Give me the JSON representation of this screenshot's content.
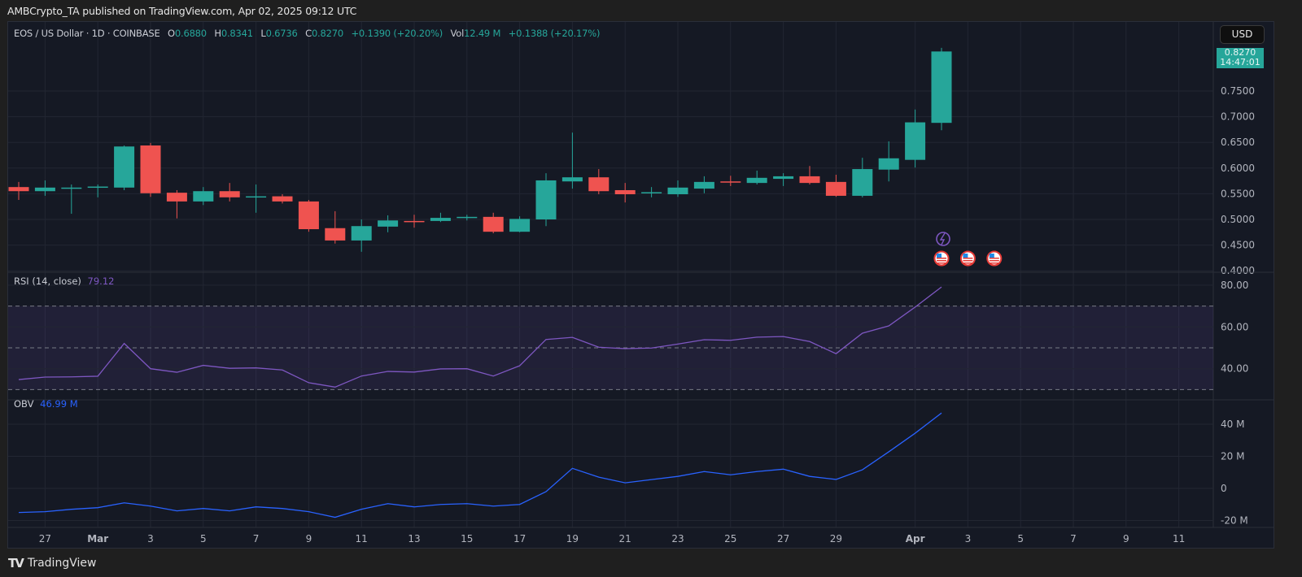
{
  "published": "AMBCrypto_TA published on TradingView.com, Apr 02, 2025 09:12 UTC",
  "legend": {
    "symbol": "EOS / US Dollar · 1D · COINBASE",
    "o_label": "O",
    "o": "0.6880",
    "h_label": "H",
    "h": "0.8341",
    "l_label": "L",
    "l": "0.6736",
    "c_label": "C",
    "c": "0.8270",
    "change": "+0.1390 (+20.20%)",
    "vol_label": "Vol",
    "vol": "12.49 M",
    "vol_change": "+0.1388 (+20.17%)"
  },
  "currency_button": "USD",
  "last_price": {
    "price": "0.8270",
    "countdown": "14:47:01"
  },
  "rsi": {
    "label": "RSI (14, close)",
    "value": "79.12"
  },
  "obv": {
    "label": "OBV",
    "value": "46.99 M"
  },
  "footer": {
    "brand": "TradingView"
  },
  "colors": {
    "up": "#26a69a",
    "down": "#ef5350",
    "rsi": "#7e57c2",
    "obv": "#2962ff",
    "background": "#151924"
  },
  "chart_data": {
    "type": "candlestick",
    "symbol": "EOS/USD",
    "interval": "1D",
    "price_axis": {
      "ticks": [
        "0.4000",
        "0.4500",
        "0.5000",
        "0.5500",
        "0.6000",
        "0.6500",
        "0.7000",
        "0.7500"
      ],
      "range": [
        0.395,
        0.86
      ]
    },
    "date_axis": {
      "ticks": [
        "27",
        "Mar",
        "3",
        "5",
        "7",
        "9",
        "11",
        "13",
        "15",
        "17",
        "19",
        "21",
        "23",
        "25",
        "27",
        "29",
        "Apr",
        "3",
        "5",
        "7",
        "9",
        "11"
      ],
      "tick_dates": [
        "2025-02-27",
        "2025-03-01",
        "2025-03-03",
        "2025-03-05",
        "2025-03-07",
        "2025-03-09",
        "2025-03-11",
        "2025-03-13",
        "2025-03-15",
        "2025-03-17",
        "2025-03-19",
        "2025-03-21",
        "2025-03-23",
        "2025-03-25",
        "2025-03-27",
        "2025-03-29",
        "2025-04-01",
        "2025-04-03",
        "2025-04-05",
        "2025-04-07",
        "2025-04-09",
        "2025-04-11"
      ]
    },
    "candles": [
      {
        "date": "2025-02-26",
        "o": 0.563,
        "h": 0.573,
        "l": 0.538,
        "c": 0.555
      },
      {
        "date": "2025-02-27",
        "o": 0.555,
        "h": 0.576,
        "l": 0.546,
        "c": 0.562
      },
      {
        "date": "2025-02-28",
        "o": 0.561,
        "h": 0.568,
        "l": 0.511,
        "c": 0.562
      },
      {
        "date": "2025-03-01",
        "o": 0.562,
        "h": 0.568,
        "l": 0.543,
        "c": 0.564
      },
      {
        "date": "2025-03-02",
        "o": 0.562,
        "h": 0.644,
        "l": 0.557,
        "c": 0.642
      },
      {
        "date": "2025-03-03",
        "o": 0.644,
        "h": 0.649,
        "l": 0.544,
        "c": 0.551
      },
      {
        "date": "2025-03-04",
        "o": 0.552,
        "h": 0.557,
        "l": 0.502,
        "c": 0.535
      },
      {
        "date": "2025-03-05",
        "o": 0.535,
        "h": 0.563,
        "l": 0.528,
        "c": 0.555
      },
      {
        "date": "2025-03-06",
        "o": 0.555,
        "h": 0.571,
        "l": 0.535,
        "c": 0.543
      },
      {
        "date": "2025-03-07",
        "o": 0.543,
        "h": 0.568,
        "l": 0.513,
        "c": 0.545
      },
      {
        "date": "2025-03-08",
        "o": 0.545,
        "h": 0.549,
        "l": 0.531,
        "c": 0.535
      },
      {
        "date": "2025-03-09",
        "o": 0.535,
        "h": 0.538,
        "l": 0.476,
        "c": 0.481
      },
      {
        "date": "2025-03-10",
        "o": 0.483,
        "h": 0.516,
        "l": 0.453,
        "c": 0.459
      },
      {
        "date": "2025-03-11",
        "o": 0.459,
        "h": 0.5,
        "l": 0.437,
        "c": 0.487
      },
      {
        "date": "2025-03-12",
        "o": 0.486,
        "h": 0.508,
        "l": 0.475,
        "c": 0.498
      },
      {
        "date": "2025-03-13",
        "o": 0.497,
        "h": 0.509,
        "l": 0.484,
        "c": 0.495
      },
      {
        "date": "2025-03-14",
        "o": 0.497,
        "h": 0.513,
        "l": 0.495,
        "c": 0.503
      },
      {
        "date": "2025-03-15",
        "o": 0.504,
        "h": 0.509,
        "l": 0.498,
        "c": 0.505
      },
      {
        "date": "2025-03-16",
        "o": 0.505,
        "h": 0.513,
        "l": 0.473,
        "c": 0.476
      },
      {
        "date": "2025-03-17",
        "o": 0.476,
        "h": 0.506,
        "l": 0.475,
        "c": 0.501
      },
      {
        "date": "2025-03-18",
        "o": 0.5,
        "h": 0.59,
        "l": 0.487,
        "c": 0.576
      },
      {
        "date": "2025-03-19",
        "o": 0.574,
        "h": 0.669,
        "l": 0.56,
        "c": 0.582
      },
      {
        "date": "2025-03-20",
        "o": 0.582,
        "h": 0.598,
        "l": 0.549,
        "c": 0.555
      },
      {
        "date": "2025-03-21",
        "o": 0.557,
        "h": 0.571,
        "l": 0.533,
        "c": 0.549
      },
      {
        "date": "2025-03-22",
        "o": 0.551,
        "h": 0.563,
        "l": 0.543,
        "c": 0.553
      },
      {
        "date": "2025-03-23",
        "o": 0.549,
        "h": 0.576,
        "l": 0.544,
        "c": 0.562
      },
      {
        "date": "2025-03-24",
        "o": 0.56,
        "h": 0.584,
        "l": 0.551,
        "c": 0.573
      },
      {
        "date": "2025-03-25",
        "o": 0.574,
        "h": 0.585,
        "l": 0.565,
        "c": 0.573
      },
      {
        "date": "2025-03-26",
        "o": 0.571,
        "h": 0.595,
        "l": 0.568,
        "c": 0.581
      },
      {
        "date": "2025-03-27",
        "o": 0.579,
        "h": 0.59,
        "l": 0.565,
        "c": 0.584
      },
      {
        "date": "2025-03-28",
        "o": 0.584,
        "h": 0.604,
        "l": 0.568,
        "c": 0.571
      },
      {
        "date": "2025-03-29",
        "o": 0.573,
        "h": 0.587,
        "l": 0.544,
        "c": 0.546
      },
      {
        "date": "2025-03-30",
        "o": 0.546,
        "h": 0.62,
        "l": 0.543,
        "c": 0.598
      },
      {
        "date": "2025-03-31",
        "o": 0.597,
        "h": 0.652,
        "l": 0.574,
        "c": 0.619
      },
      {
        "date": "2025-04-01",
        "o": 0.616,
        "h": 0.714,
        "l": 0.601,
        "c": 0.689
      },
      {
        "date": "2025-04-02",
        "o": 0.688,
        "h": 0.8341,
        "l": 0.6736,
        "c": 0.827
      }
    ],
    "rsi": {
      "axis_ticks": [
        "80.00",
        "60.00",
        "40.00"
      ],
      "range": [
        25,
        83
      ],
      "bands": [
        70,
        50,
        30
      ],
      "values": [
        34.8,
        36.0,
        36.1,
        36.4,
        52.1,
        40.0,
        38.3,
        41.6,
        40.2,
        40.4,
        39.4,
        33.3,
        31.2,
        36.5,
        38.7,
        38.4,
        39.9,
        40.0,
        36.5,
        41.4,
        54.0,
        55.0,
        50.3,
        49.6,
        49.9,
        51.8,
        53.9,
        53.6,
        55.1,
        55.4,
        53.0,
        47.2,
        57.0,
        60.5,
        69.5,
        79.12
      ]
    },
    "obv": {
      "axis_ticks": [
        "40 M",
        "20 M",
        "0",
        "-20 M"
      ],
      "unit": "M",
      "range": [
        -25,
        55
      ],
      "values": [
        -15,
        -14.5,
        -13,
        -12,
        -9,
        -11,
        -14,
        -12.5,
        -14,
        -11.5,
        -12.5,
        -14.5,
        -18,
        -13,
        -9.5,
        -11.5,
        -10,
        -9.5,
        -11,
        -10,
        -2,
        12.5,
        7,
        3.5,
        5.5,
        7.5,
        10.5,
        8.5,
        10.5,
        12,
        7.5,
        5.6,
        11.6,
        22.8,
        34.4,
        46.99
      ]
    },
    "events": [
      {
        "type": "lightning-event",
        "date": "2025-04-02"
      },
      {
        "type": "us-flag-economic-event",
        "date": "2025-04-02"
      },
      {
        "type": "us-flag-economic-event",
        "date": "2025-04-03"
      },
      {
        "type": "us-flag-economic-event",
        "date": "2025-04-04"
      }
    ]
  }
}
